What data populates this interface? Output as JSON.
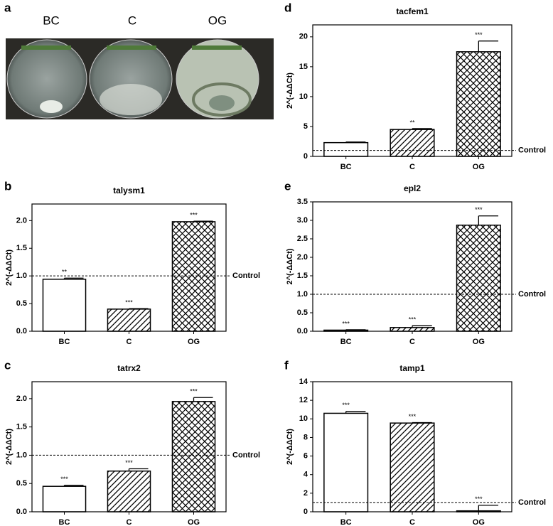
{
  "photo": {
    "panel": "a",
    "captions": [
      "BC",
      "C",
      "OG"
    ]
  },
  "chart_data": [
    {
      "type": "bar",
      "panel": "b",
      "title": "talysm1",
      "ylabel": "2^(-ΔΔCt)",
      "categories": [
        "BC",
        "C",
        "OG"
      ],
      "values": [
        0.94,
        0.4,
        1.98
      ],
      "errors": [
        0.02,
        0.01,
        0.01
      ],
      "annotations": [
        "**",
        "***",
        "***"
      ],
      "patterns": [
        "none",
        "diagonal",
        "crosshatch"
      ],
      "color": "#000000",
      "ylim": [
        0,
        2.3
      ],
      "yticks": [
        {
          "value": 0,
          "label": "0.0"
        },
        {
          "value": 0.5,
          "label": "0.5"
        },
        {
          "value": 1,
          "label": "1.0"
        },
        {
          "value": 1.5,
          "label": "1.5"
        },
        {
          "value": 2,
          "label": "2.0"
        }
      ],
      "reference": {
        "value": 1,
        "label": "Control"
      }
    },
    {
      "type": "bar",
      "panel": "c",
      "title": "tatrx2",
      "ylabel": "2^(-ΔΔCt)",
      "categories": [
        "BC",
        "C",
        "OG"
      ],
      "values": [
        0.45,
        0.72,
        1.95
      ],
      "errors": [
        0.02,
        0.04,
        0.07
      ],
      "annotations": [
        "***",
        "***",
        "***"
      ],
      "patterns": [
        "none",
        "diagonal",
        "crosshatch"
      ],
      "color": "#000000",
      "ylim": [
        0,
        2.3
      ],
      "yticks": [
        {
          "value": 0,
          "label": "0.0"
        },
        {
          "value": 0.5,
          "label": "0.5"
        },
        {
          "value": 1,
          "label": "1.0"
        },
        {
          "value": 1.5,
          "label": "1.5"
        },
        {
          "value": 2,
          "label": "2.0"
        }
      ],
      "reference": {
        "value": 1,
        "label": "Control"
      }
    },
    {
      "type": "bar",
      "panel": "d",
      "title": "tacfem1",
      "ylabel": "2^(-ΔΔCt)",
      "categories": [
        "BC",
        "C",
        "OG"
      ],
      "values": [
        2.3,
        4.5,
        17.5
      ],
      "errors": [
        0.1,
        0.15,
        1.8
      ],
      "annotations": [
        null,
        "**",
        "***"
      ],
      "patterns": [
        "none",
        "diagonal",
        "crosshatch"
      ],
      "color": "#000000",
      "ylim": [
        0,
        22
      ],
      "yticks": [
        0,
        5,
        10,
        15,
        20
      ],
      "reference": {
        "value": 1,
        "label": "Control"
      }
    },
    {
      "type": "bar",
      "panel": "e",
      "title": "epl2",
      "ylabel": "2^(-ΔΔCt)",
      "categories": [
        "BC",
        "C",
        "OG"
      ],
      "values": [
        0.03,
        0.1,
        2.87
      ],
      "errors": [
        0.01,
        0.05,
        0.25
      ],
      "annotations": [
        "***",
        "***",
        "***"
      ],
      "patterns": [
        "none",
        "diagonal",
        "crosshatch"
      ],
      "color": "#000000",
      "ylim": [
        0,
        3.5
      ],
      "yticks": [
        {
          "value": 0,
          "label": "0.0"
        },
        {
          "value": 0.5,
          "label": "0.5"
        },
        {
          "value": 1,
          "label": "1.0"
        },
        {
          "value": 1.5,
          "label": "1.5"
        },
        {
          "value": 2,
          "label": "2.0"
        },
        {
          "value": 2.5,
          "label": "2.5"
        },
        {
          "value": 3,
          "label": "3.0"
        },
        {
          "value": 3.5,
          "label": "3.5"
        }
      ],
      "reference": {
        "value": 1,
        "label": "Control"
      }
    },
    {
      "type": "bar",
      "panel": "f",
      "title": "tamp1",
      "ylabel": "2^(-ΔΔCt)",
      "categories": [
        "BC",
        "C",
        "OG"
      ],
      "values": [
        10.6,
        9.55,
        0.1
      ],
      "errors": [
        0.2,
        0.05,
        0.6
      ],
      "annotations": [
        "***",
        "***",
        "***"
      ],
      "patterns": [
        "none",
        "diagonal",
        "crosshatch"
      ],
      "color": "#000000",
      "ylim": [
        0,
        14
      ],
      "yticks": [
        0,
        2,
        4,
        6,
        8,
        10,
        12,
        14
      ],
      "reference": {
        "value": 1,
        "label": "Control"
      }
    }
  ]
}
